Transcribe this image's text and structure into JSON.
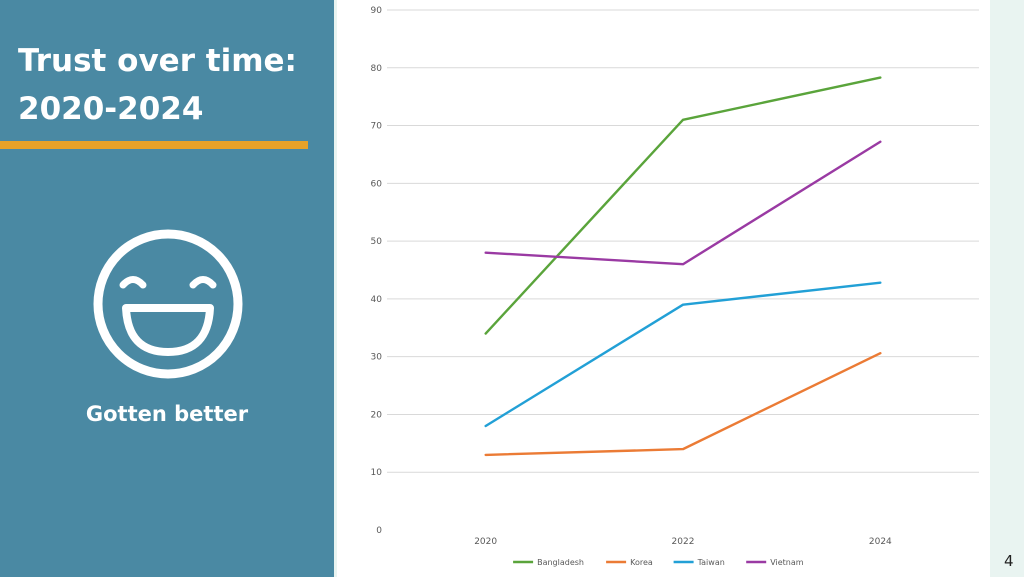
{
  "slide": {
    "title_line1": "Trust over time:",
    "title_line2": "2020-2024",
    "caption": "Gotten better",
    "face_icon": "laughing-face-icon",
    "slide_number": "4",
    "colors": {
      "panel": "#4a89a3",
      "accent": "#e7a229",
      "background": "#e9f4f1"
    }
  },
  "chart_data": {
    "type": "line",
    "title": "",
    "xlabel": "",
    "ylabel": "",
    "categories": [
      "2020",
      "2022",
      "2024"
    ],
    "ylim": [
      0,
      90
    ],
    "yticks": [
      0,
      10,
      20,
      30,
      40,
      50,
      60,
      70,
      80,
      90
    ],
    "grid": true,
    "legend_position": "bottom",
    "series": [
      {
        "name": "Bangladesh",
        "color": "#5aa43b",
        "values": [
          34,
          71,
          78.3
        ]
      },
      {
        "name": "Korea",
        "color": "#eb7b35",
        "values": [
          13,
          14,
          30.6
        ]
      },
      {
        "name": "Taiwan",
        "color": "#22a0d6",
        "values": [
          18,
          39,
          42.8
        ]
      },
      {
        "name": "Vietnam",
        "color": "#9a3aa3",
        "values": [
          48,
          46,
          67.2
        ]
      }
    ]
  }
}
